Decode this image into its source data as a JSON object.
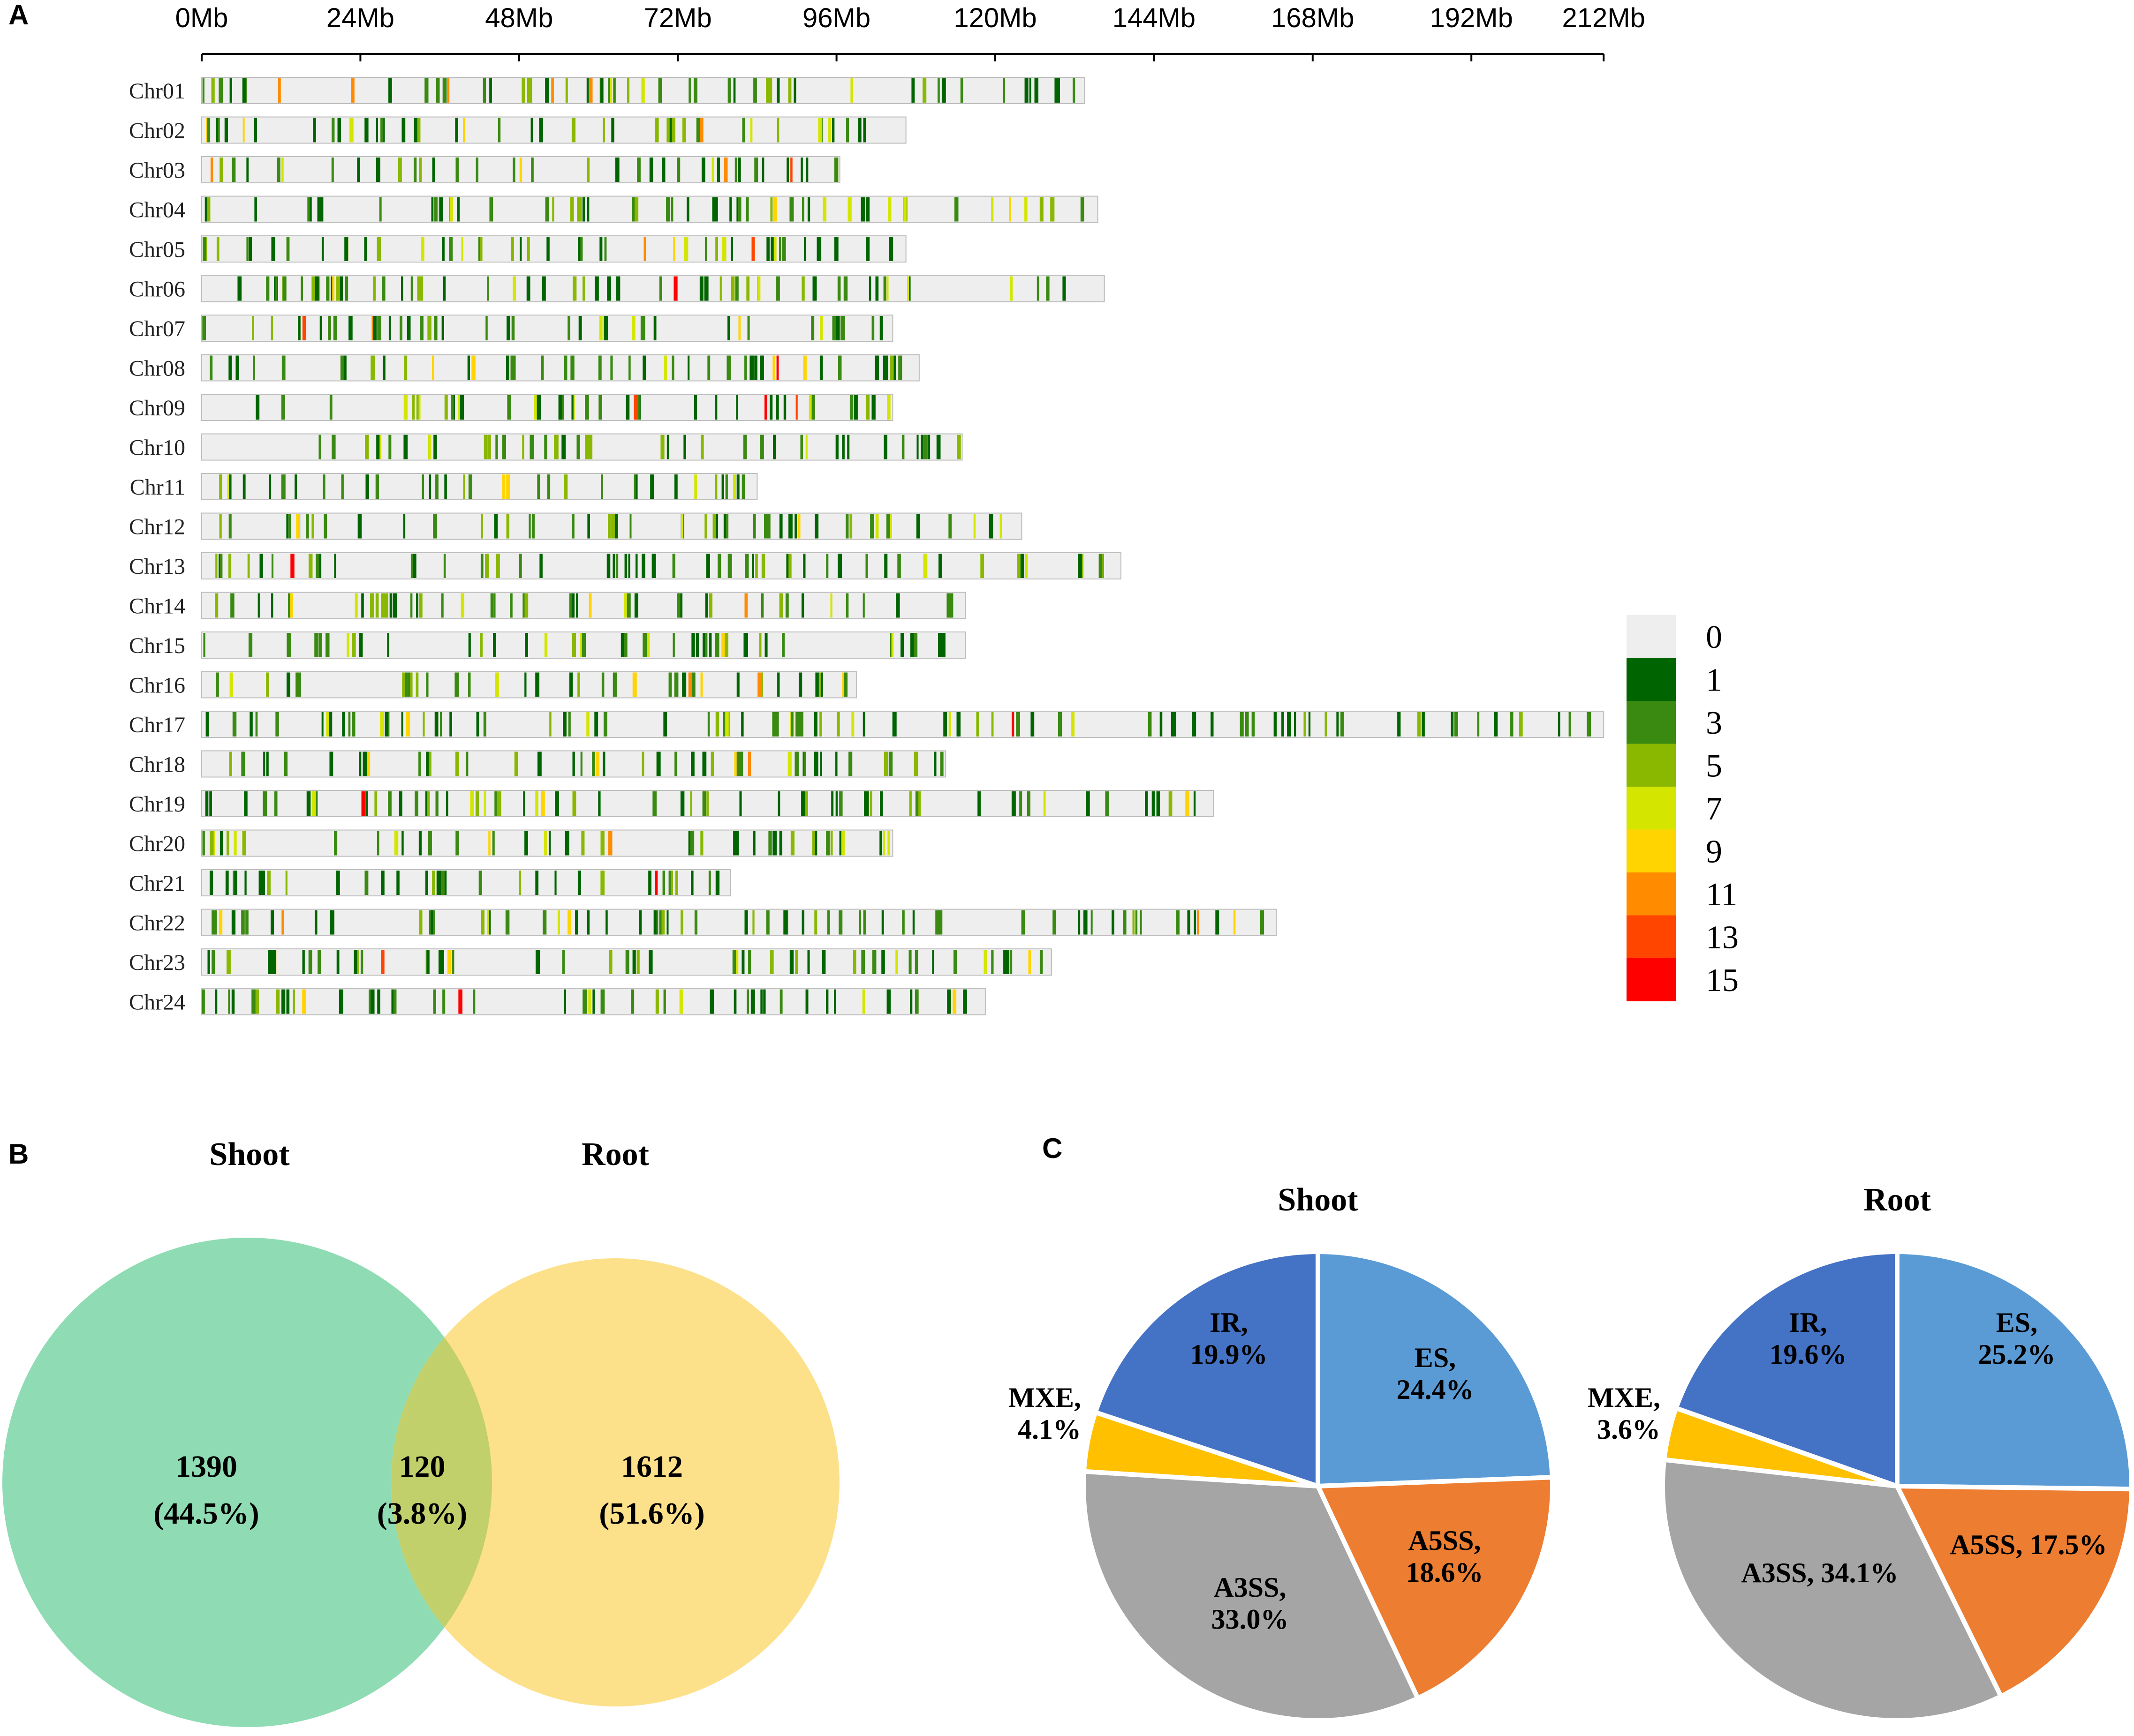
{
  "chart_data": [
    {
      "panel": "A",
      "type": "heatmap",
      "title": "",
      "x_axis": {
        "unit": "Mb",
        "range": [
          0,
          212
        ],
        "tick_labels": [
          "0Mb",
          "24Mb",
          "48Mb",
          "72Mb",
          "96Mb",
          "120Mb",
          "144Mb",
          "168Mb",
          "192Mb",
          "212Mb"
        ],
        "tick_values": [
          0,
          24,
          48,
          72,
          96,
          120,
          144,
          168,
          192,
          212
        ]
      },
      "chromosomes": [
        {
          "name": "Chr01",
          "length_mb": 133.5
        },
        {
          "name": "Chr02",
          "length_mb": 106.5
        },
        {
          "name": "Chr03",
          "length_mb": 96.5
        },
        {
          "name": "Chr04",
          "length_mb": 135.5
        },
        {
          "name": "Chr05",
          "length_mb": 106.5
        },
        {
          "name": "Chr06",
          "length_mb": 136.5
        },
        {
          "name": "Chr07",
          "length_mb": 104.5
        },
        {
          "name": "Chr08",
          "length_mb": 108.5
        },
        {
          "name": "Chr09",
          "length_mb": 104.5
        },
        {
          "name": "Chr10",
          "length_mb": 115
        },
        {
          "name": "Chr11",
          "length_mb": 84
        },
        {
          "name": "Chr12",
          "length_mb": 124
        },
        {
          "name": "Chr13",
          "length_mb": 139
        },
        {
          "name": "Chr14",
          "length_mb": 115.5
        },
        {
          "name": "Chr15",
          "length_mb": 115.5
        },
        {
          "name": "Chr16",
          "length_mb": 99
        },
        {
          "name": "Chr17",
          "length_mb": 212
        },
        {
          "name": "Chr18",
          "length_mb": 112.5
        },
        {
          "name": "Chr19",
          "length_mb": 153
        },
        {
          "name": "Chr20",
          "length_mb": 104.5
        },
        {
          "name": "Chr21",
          "length_mb": 80
        },
        {
          "name": "Chr22",
          "length_mb": 162.5
        },
        {
          "name": "Chr23",
          "length_mb": 128.5
        },
        {
          "name": "Chr24",
          "length_mb": 118.5
        }
      ],
      "legend": {
        "labels": [
          "0",
          "1",
          "3",
          "5",
          "7",
          "9",
          "11",
          "13",
          "15"
        ],
        "colors": [
          "#eeeeee",
          "#006400",
          "#3a8a12",
          "#8ab800",
          "#d4e600",
          "#ffd400",
          "#ff8c00",
          "#ff4500",
          "#ff0000"
        ]
      }
    },
    {
      "panel": "B",
      "type": "venn",
      "sets": [
        {
          "name": "Shoot",
          "color": "#8fdcb4"
        },
        {
          "name": "Root",
          "color": "#fde08a"
        }
      ],
      "regions": [
        {
          "label": "1390",
          "pct": "(44.5%)"
        },
        {
          "label": "120",
          "pct": "(3.8%)"
        },
        {
          "label": "1612",
          "pct": "(51.6%)"
        }
      ]
    },
    {
      "panel": "C",
      "type": "pie",
      "charts": [
        {
          "title": "Shoot",
          "slices": [
            {
              "name": "ES",
              "value": 24.4,
              "color": "#5b9bd5",
              "label_lines": [
                "ES,",
                "24.4%"
              ]
            },
            {
              "name": "A5SS",
              "value": 18.6,
              "color": "#ed7d31",
              "label_lines": [
                "A5SS,",
                "18.6%"
              ]
            },
            {
              "name": "A3SS",
              "value": 33.0,
              "color": "#a5a5a5",
              "label_lines": [
                "A3SS,",
                "33.0%"
              ]
            },
            {
              "name": "MXE",
              "value": 4.1,
              "color": "#ffc000",
              "label_lines": [
                "MXE,",
                "4.1%"
              ]
            },
            {
              "name": "IR",
              "value": 19.9,
              "color": "#4472c4",
              "label_lines": [
                "IR,",
                "19.9%"
              ]
            }
          ]
        },
        {
          "title": "Root",
          "slices": [
            {
              "name": "ES",
              "value": 25.2,
              "color": "#5b9bd5",
              "label_lines": [
                "ES,",
                "25.2%"
              ]
            },
            {
              "name": "A5SS",
              "value": 17.5,
              "color": "#ed7d31",
              "label_lines": [
                "A5SS, 17.5%"
              ]
            },
            {
              "name": "A3SS",
              "value": 34.1,
              "color": "#a5a5a5",
              "label_lines": [
                "A3SS, 34.1%"
              ]
            },
            {
              "name": "MXE",
              "value": 3.6,
              "color": "#ffc000",
              "label_lines": [
                "MXE,",
                "3.6%"
              ]
            },
            {
              "name": "IR",
              "value": 19.6,
              "color": "#4472c4",
              "label_lines": [
                "IR,",
                "19.6%"
              ]
            }
          ]
        }
      ]
    }
  ],
  "panel_labels": {
    "a": "A",
    "b": "B",
    "c": "C"
  }
}
